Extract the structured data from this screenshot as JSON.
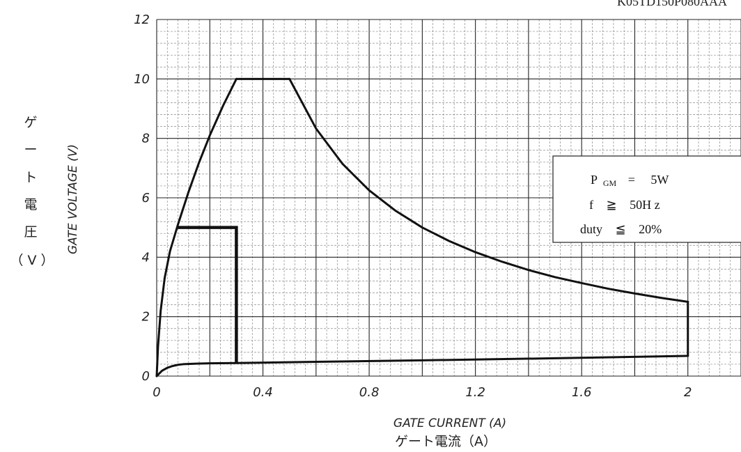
{
  "doc_code": "K05TD150P080AAA",
  "chart_data": {
    "type": "line",
    "title": "",
    "xlabel_en": "GATE CURRENT (A)",
    "xlabel_jp": "ゲート電流（A）",
    "ylabel_en": "GATE VOLTAGE (V)",
    "ylabel_jp": [
      "ゲ",
      "ー",
      "ト",
      "電",
      "圧",
      "（ V ）"
    ],
    "xlim": [
      0,
      2.2
    ],
    "ylim": [
      0,
      12
    ],
    "grid": true,
    "x_ticks": [
      {
        "value": 0,
        "label": "0"
      },
      {
        "value": 0.4,
        "label": "0.4"
      },
      {
        "value": 0.8,
        "label": "0.8"
      },
      {
        "value": 1.2,
        "label": "1.2"
      },
      {
        "value": 1.6,
        "label": "1.6"
      },
      {
        "value": 2.0,
        "label": "2"
      }
    ],
    "y_ticks": [
      {
        "value": 0,
        "label": "0"
      },
      {
        "value": 2,
        "label": "2"
      },
      {
        "value": 4,
        "label": "4"
      },
      {
        "value": 6,
        "label": "6"
      },
      {
        "value": 8,
        "label": "8"
      },
      {
        "value": 10,
        "label": "10"
      },
      {
        "value": 12,
        "label": "12"
      }
    ],
    "series": [
      {
        "style": "curve",
        "x": [
          0,
          0.005,
          0.015,
          0.03,
          0.05,
          0.08,
          0.12,
          0.16,
          0.2,
          0.25,
          0.3
        ],
        "y": [
          0,
          1.0,
          2.2,
          3.3,
          4.2,
          5.1,
          6.2,
          7.2,
          8.1,
          9.1,
          10.0
        ]
      },
      {
        "style": "curve",
        "x": [
          0.3,
          0.5
        ],
        "y": [
          10.0,
          10.0
        ]
      },
      {
        "style": "curve",
        "x": [
          0.5,
          0.6,
          0.7,
          0.8,
          0.9,
          1.0,
          1.1,
          1.2,
          1.3,
          1.4,
          1.5,
          1.6,
          1.7,
          1.8,
          1.9,
          2.0
        ],
        "y": [
          10.0,
          8.33,
          7.14,
          6.25,
          5.56,
          5.0,
          4.55,
          4.17,
          3.85,
          3.57,
          3.33,
          3.13,
          2.94,
          2.78,
          2.63,
          2.5
        ]
      },
      {
        "style": "curve",
        "x": [
          2.0,
          2.0
        ],
        "y": [
          2.5,
          0.68
        ]
      },
      {
        "style": "curve",
        "x": [
          0,
          0.02,
          0.04,
          0.06,
          0.08,
          0.1,
          0.15,
          0.2,
          0.3,
          0.6,
          1.0,
          1.5,
          2.0
        ],
        "y": [
          0,
          0.18,
          0.28,
          0.34,
          0.38,
          0.4,
          0.42,
          0.43,
          0.44,
          0.48,
          0.53,
          0.6,
          0.68
        ]
      },
      {
        "style": "pulse",
        "x": [
          0.08,
          0.3,
          0.3
        ],
        "y": [
          5,
          5,
          0.44
        ]
      }
    ],
    "annotation_box": {
      "lines": [
        {
          "parts": [
            "P",
            "GM",
            "=",
            "5W"
          ]
        },
        {
          "parts": [
            "f",
            "≧",
            "50H z"
          ]
        },
        {
          "parts": [
            "duty",
            "≦",
            "20%"
          ]
        }
      ]
    }
  }
}
